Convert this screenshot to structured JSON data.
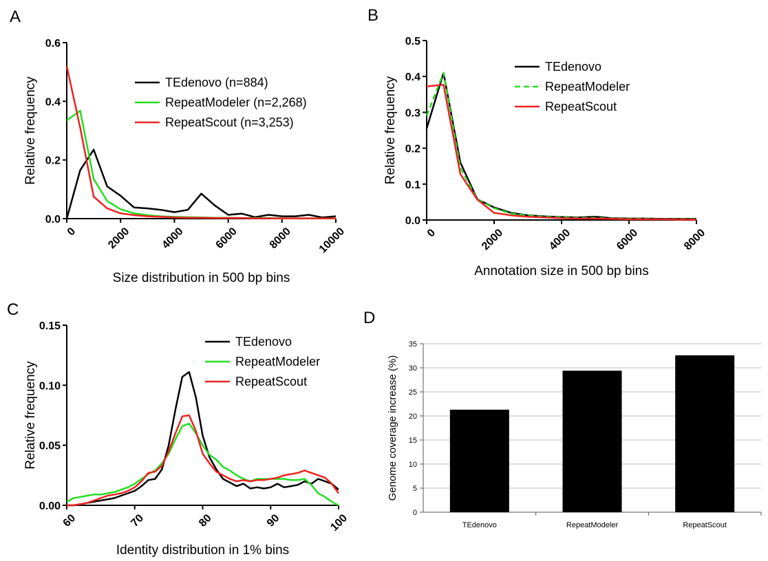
{
  "chart_data": [
    {
      "panel": "A",
      "type": "line",
      "xlabel": "Size distribution in 500 bp bins",
      "ylabel": "Relative frequency",
      "xlim": [
        0,
        10000
      ],
      "ylim": [
        0,
        0.6
      ],
      "xticks": [
        0,
        2000,
        4000,
        6000,
        8000,
        10000
      ],
      "yticks": [
        0.0,
        0.2,
        0.4,
        0.6
      ],
      "ytick_labels": [
        "0.0",
        "0.2",
        "0.4",
        "0.6"
      ],
      "legend_placement": "top-right",
      "series": [
        {
          "name": "TEdenovo (n=884)",
          "color": "#000000",
          "dash": "",
          "x": [
            0,
            500,
            1000,
            1500,
            2000,
            2500,
            3000,
            3500,
            4000,
            4500,
            5000,
            5500,
            6000,
            6500,
            7000,
            7500,
            8000,
            8500,
            9000,
            9500,
            10000
          ],
          "y": [
            0.0,
            0.165,
            0.235,
            0.11,
            0.078,
            0.038,
            0.035,
            0.03,
            0.022,
            0.03,
            0.085,
            0.045,
            0.013,
            0.017,
            0.005,
            0.013,
            0.008,
            0.008,
            0.013,
            0.004,
            0.008
          ]
        },
        {
          "name": "RepeatModeler (n=2,268)",
          "color": "#22dd22",
          "dash": "",
          "x": [
            0,
            500,
            1000,
            1500,
            2000,
            2500,
            3000,
            3500,
            4000,
            4500,
            5000,
            5500,
            6000,
            6500,
            7000,
            7500,
            8000,
            8500,
            9000,
            9500,
            10000
          ],
          "y": [
            0.335,
            0.368,
            0.135,
            0.06,
            0.032,
            0.018,
            0.012,
            0.008,
            0.006,
            0.005,
            0.004,
            0.003,
            0.003,
            0.002,
            0.002,
            0.002,
            0.001,
            0.001,
            0.001,
            0.001,
            0.001
          ]
        },
        {
          "name": "RepeatScout (n=3,253)",
          "color": "#ee2222",
          "dash": "",
          "x": [
            0,
            500,
            1000,
            1500,
            2000,
            2500,
            3000,
            3500,
            4000,
            4500,
            5000,
            5500,
            6000,
            6500,
            7000,
            7500,
            8000,
            8500,
            9000,
            9500,
            10000
          ],
          "y": [
            0.52,
            0.31,
            0.075,
            0.035,
            0.018,
            0.012,
            0.008,
            0.006,
            0.004,
            0.003,
            0.003,
            0.002,
            0.002,
            0.002,
            0.001,
            0.001,
            0.001,
            0.001,
            0.001,
            0.001,
            0.001
          ]
        }
      ]
    },
    {
      "panel": "B",
      "type": "line",
      "xlabel": "Annotation size in 500 bp bins",
      "ylabel": "Relative frequency",
      "xlim": [
        0,
        8000
      ],
      "ylim": [
        0,
        0.5
      ],
      "xticks": [
        0,
        2000,
        4000,
        6000,
        8000
      ],
      "yticks": [
        0.0,
        0.1,
        0.2,
        0.3,
        0.4,
        0.5
      ],
      "ytick_labels": [
        "0.0",
        "0.1",
        "0.2",
        "0.3",
        "0.4",
        "0.5"
      ],
      "legend_placement": "top-right",
      "series": [
        {
          "name": "TEdenovo",
          "color": "#000000",
          "dash": "",
          "x": [
            0,
            500,
            1000,
            1500,
            2000,
            2500,
            3000,
            3500,
            4000,
            4500,
            5000,
            5500,
            6000,
            6500,
            7000,
            7500,
            8000
          ],
          "y": [
            0.255,
            0.41,
            0.16,
            0.058,
            0.035,
            0.02,
            0.013,
            0.01,
            0.008,
            0.007,
            0.009,
            0.005,
            0.004,
            0.004,
            0.003,
            0.003,
            0.003
          ]
        },
        {
          "name": "RepeatModeler",
          "color": "#22dd22",
          "dash": "8,5",
          "x": [
            0,
            500,
            1000,
            1500,
            2000,
            2500,
            3000,
            3500,
            4000,
            4500,
            5000,
            5500,
            6000,
            6500,
            7000,
            7500,
            8000
          ],
          "y": [
            0.29,
            0.41,
            0.145,
            0.058,
            0.033,
            0.018,
            0.012,
            0.009,
            0.007,
            0.006,
            0.006,
            0.004,
            0.003,
            0.003,
            0.002,
            0.002,
            0.002
          ]
        },
        {
          "name": "RepeatScout",
          "color": "#ee2222",
          "dash": "",
          "x": [
            0,
            500,
            1000,
            1500,
            2000,
            2500,
            3000,
            3500,
            4000,
            4500,
            5000,
            5500,
            6000,
            6500,
            7000,
            7500,
            8000
          ],
          "y": [
            0.372,
            0.377,
            0.128,
            0.057,
            0.02,
            0.013,
            0.009,
            0.007,
            0.005,
            0.004,
            0.004,
            0.003,
            0.002,
            0.002,
            0.002,
            0.001,
            0.001
          ]
        }
      ]
    },
    {
      "panel": "C",
      "type": "line",
      "xlabel": "Identity distribution in 1% bins",
      "ylabel": "Relative frequency",
      "xlim": [
        60,
        100
      ],
      "ylim": [
        0,
        0.15
      ],
      "xticks": [
        60,
        70,
        80,
        90,
        100
      ],
      "yticks": [
        0.0,
        0.05,
        0.1,
        0.15
      ],
      "ytick_labels": [
        "0.00",
        "0.05",
        "0.10",
        "0.15"
      ],
      "legend_placement": "top-right",
      "series": [
        {
          "name": "TEdenovo",
          "color": "#000000",
          "dash": "",
          "x": [
            60,
            61,
            62,
            63,
            64,
            65,
            66,
            67,
            68,
            69,
            70,
            71,
            72,
            73,
            74,
            75,
            76,
            77,
            78,
            79,
            80,
            81,
            82,
            83,
            84,
            85,
            86,
            87,
            88,
            89,
            90,
            91,
            92,
            93,
            94,
            95,
            96,
            97,
            98,
            99,
            100
          ],
          "y": [
            0.0,
            0.0,
            0.001,
            0.002,
            0.003,
            0.004,
            0.005,
            0.006,
            0.008,
            0.01,
            0.012,
            0.016,
            0.021,
            0.022,
            0.03,
            0.05,
            0.08,
            0.107,
            0.111,
            0.09,
            0.058,
            0.04,
            0.03,
            0.022,
            0.019,
            0.016,
            0.018,
            0.014,
            0.015,
            0.014,
            0.015,
            0.018,
            0.015,
            0.016,
            0.017,
            0.02,
            0.018,
            0.022,
            0.02,
            0.018,
            0.013
          ]
        },
        {
          "name": "RepeatModeler",
          "color": "#22dd22",
          "dash": "",
          "x": [
            60,
            61,
            62,
            63,
            64,
            65,
            66,
            67,
            68,
            69,
            70,
            71,
            72,
            73,
            74,
            75,
            76,
            77,
            78,
            79,
            80,
            81,
            82,
            83,
            84,
            85,
            86,
            87,
            88,
            89,
            90,
            91,
            92,
            93,
            94,
            95,
            96,
            97,
            98,
            99,
            100
          ],
          "y": [
            0.003,
            0.006,
            0.007,
            0.008,
            0.009,
            0.009,
            0.01,
            0.011,
            0.013,
            0.015,
            0.018,
            0.022,
            0.026,
            0.029,
            0.035,
            0.043,
            0.055,
            0.066,
            0.068,
            0.06,
            0.05,
            0.042,
            0.038,
            0.032,
            0.029,
            0.025,
            0.022,
            0.02,
            0.022,
            0.022,
            0.022,
            0.022,
            0.022,
            0.021,
            0.021,
            0.022,
            0.017,
            0.01,
            0.007,
            0.003,
            0.0
          ]
        },
        {
          "name": "RepeatScout",
          "color": "#ee2222",
          "dash": "",
          "x": [
            60,
            61,
            62,
            63,
            64,
            65,
            66,
            67,
            68,
            69,
            70,
            71,
            72,
            73,
            74,
            75,
            76,
            77,
            78,
            79,
            80,
            81,
            82,
            83,
            84,
            85,
            86,
            87,
            88,
            89,
            90,
            91,
            92,
            93,
            94,
            95,
            96,
            97,
            98,
            99,
            100
          ],
          "y": [
            0.0,
            0.0,
            0.001,
            0.002,
            0.004,
            0.006,
            0.008,
            0.009,
            0.01,
            0.012,
            0.015,
            0.02,
            0.027,
            0.028,
            0.033,
            0.045,
            0.06,
            0.074,
            0.075,
            0.062,
            0.043,
            0.035,
            0.028,
            0.025,
            0.022,
            0.02,
            0.021,
            0.02,
            0.021,
            0.021,
            0.022,
            0.023,
            0.025,
            0.026,
            0.027,
            0.029,
            0.027,
            0.025,
            0.023,
            0.018,
            0.01
          ]
        }
      ]
    },
    {
      "panel": "D",
      "type": "bar",
      "xlabel": "",
      "ylabel": "Genome coverage increase (%)",
      "ylim": [
        0,
        35
      ],
      "yticks": [
        0,
        5,
        10,
        15,
        20,
        25,
        30,
        35
      ],
      "ytick_labels": [
        "0",
        "5",
        "10",
        "15",
        "20",
        "25",
        "30",
        "35"
      ],
      "grid": true,
      "categories": [
        "TEdenovo",
        "RepeatModeler",
        "RepeatScout"
      ],
      "values": [
        21.3,
        29.4,
        32.6
      ],
      "bar_color": "#000000"
    }
  ]
}
